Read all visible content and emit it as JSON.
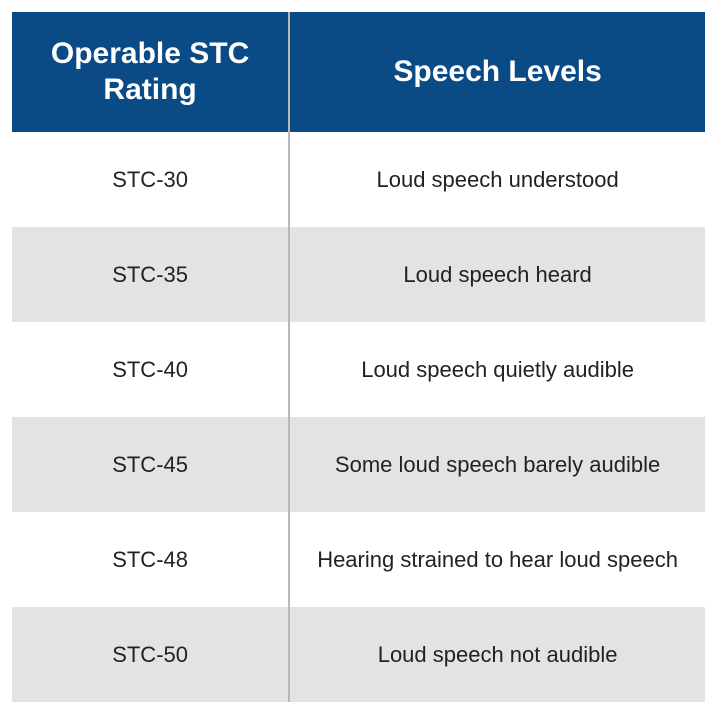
{
  "table": {
    "header_bg": "#0a4a85",
    "header_text_color": "#ffffff",
    "header_fontsize": 30,
    "body_fontsize": 22,
    "body_text_color": "#222222",
    "row_odd_bg": "#ffffff",
    "row_even_bg": "#e3e3e3",
    "divider_color": "#b8b8b8",
    "columns": [
      {
        "key": "rating",
        "label": "Operable STC Rating",
        "width_pct": 40
      },
      {
        "key": "speech",
        "label": "Speech Levels",
        "width_pct": 60
      }
    ],
    "rows": [
      {
        "rating": "STC-30",
        "speech": "Loud speech understood"
      },
      {
        "rating": "STC-35",
        "speech": "Loud speech heard"
      },
      {
        "rating": "STC-40",
        "speech": "Loud speech quietly audible"
      },
      {
        "rating": "STC-45",
        "speech": "Some loud speech barely audible"
      },
      {
        "rating": "STC-48",
        "speech": "Hearing strained to hear loud speech"
      },
      {
        "rating": "STC-50",
        "speech": "Loud speech not audible"
      }
    ]
  }
}
